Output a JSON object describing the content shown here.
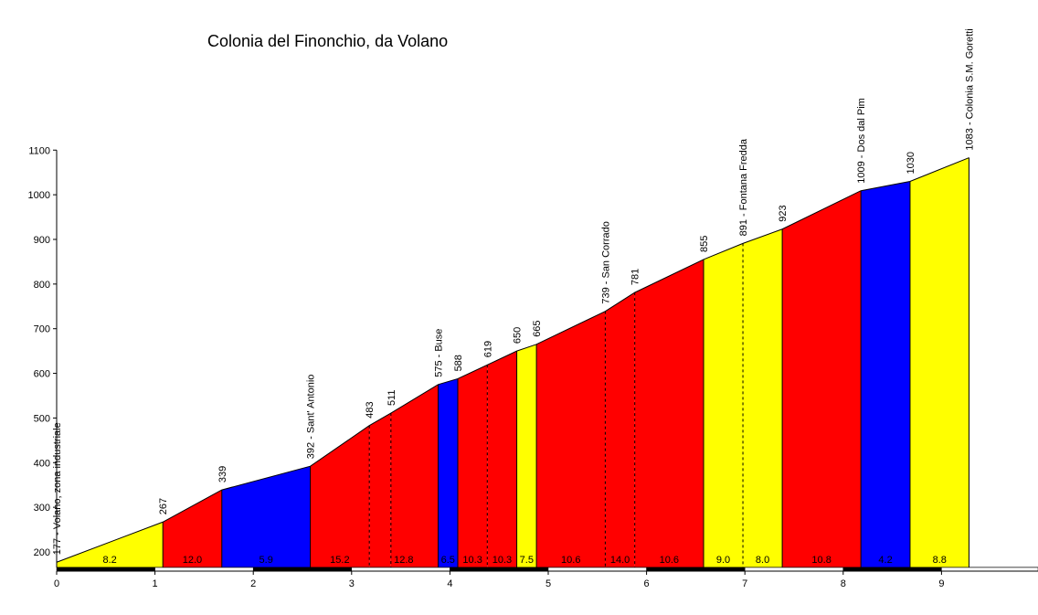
{
  "chart_data": {
    "type": "area",
    "title": "Colonia del Finonchio, da Volano",
    "xlabel": "",
    "ylabel": "",
    "xlim": [
      0,
      10.0
    ],
    "ylim": [
      165,
      1100
    ],
    "x_ticks": [
      0,
      1,
      2,
      3,
      4,
      5,
      6,
      7,
      8,
      9
    ],
    "y_ticks": [
      200,
      300,
      400,
      500,
      600,
      700,
      800,
      900,
      1000,
      1100
    ],
    "grid": false,
    "legend": "none",
    "points": [
      {
        "x": 0,
        "y": 177,
        "label": "177 - Volano, zona industriale",
        "dashed": false
      },
      {
        "x": 1.08,
        "y": 267,
        "label": "267",
        "dashed": false
      },
      {
        "x": 1.68,
        "y": 339,
        "label": "339",
        "dashed": false
      },
      {
        "x": 2.58,
        "y": 392,
        "label": "392 - Sant' Antonio",
        "dashed": false
      },
      {
        "x": 3.18,
        "y": 483,
        "label": "483",
        "dashed": true
      },
      {
        "x": 3.4,
        "y": 511,
        "label": "511",
        "dashed": true
      },
      {
        "x": 3.88,
        "y": 575,
        "label": "575 - Buse",
        "dashed": false
      },
      {
        "x": 4.08,
        "y": 588,
        "label": "588",
        "dashed": false
      },
      {
        "x": 4.38,
        "y": 619,
        "label": "619",
        "dashed": true
      },
      {
        "x": 4.68,
        "y": 650,
        "label": "650",
        "dashed": false
      },
      {
        "x": 4.88,
        "y": 665,
        "label": "665",
        "dashed": false
      },
      {
        "x": 5.58,
        "y": 739,
        "label": "739 - San Corrado",
        "dashed": true
      },
      {
        "x": 5.88,
        "y": 781,
        "label": "781",
        "dashed": true
      },
      {
        "x": 6.58,
        "y": 855,
        "label": "855",
        "dashed": false
      },
      {
        "x": 6.98,
        "y": 891,
        "label": "891 - Fontana Fredda",
        "dashed": true
      },
      {
        "x": 7.38,
        "y": 923,
        "label": "923",
        "dashed": false
      },
      {
        "x": 8.18,
        "y": 1009,
        "label": "1009 - Dos dal Pim",
        "dashed": false
      },
      {
        "x": 8.68,
        "y": 1030,
        "label": "1030",
        "dashed": false
      },
      {
        "x": 9.28,
        "y": 1083,
        "label": "1083 - Colonia S.M. Goretti",
        "dashed": false
      }
    ],
    "segments": [
      {
        "gradient": "8.2",
        "color": "#ffff00"
      },
      {
        "gradient": "12.0",
        "color": "#ff0000"
      },
      {
        "gradient": "5.9",
        "color": "#0000ff"
      },
      {
        "gradient": "15.2",
        "color": "#ff0000"
      },
      {
        "gradient": "12.8",
        "color": "#ff0000"
      },
      {
        "gradient": "12.8",
        "color": "#ff0000"
      },
      {
        "gradient": "6.5",
        "color": "#0000ff"
      },
      {
        "gradient": "10.3",
        "color": "#ff0000"
      },
      {
        "gradient": "10.3",
        "color": "#ff0000"
      },
      {
        "gradient": "7.5",
        "color": "#ffff00"
      },
      {
        "gradient": "10.6",
        "color": "#ff0000"
      },
      {
        "gradient": "14.0",
        "color": "#ff0000"
      },
      {
        "gradient": "10.6",
        "color": "#ff0000"
      },
      {
        "gradient": "9.0",
        "color": "#ffff00"
      },
      {
        "gradient": "8.0",
        "color": "#ffff00"
      },
      {
        "gradient": "10.8",
        "color": "#ff0000"
      },
      {
        "gradient": "4.2",
        "color": "#0000ff"
      },
      {
        "gradient": "8.8",
        "color": "#ffff00"
      }
    ],
    "segment_label_show": [
      true,
      true,
      true,
      true,
      true,
      false,
      true,
      true,
      true,
      true,
      true,
      true,
      true,
      true,
      true,
      true,
      true,
      true
    ]
  }
}
